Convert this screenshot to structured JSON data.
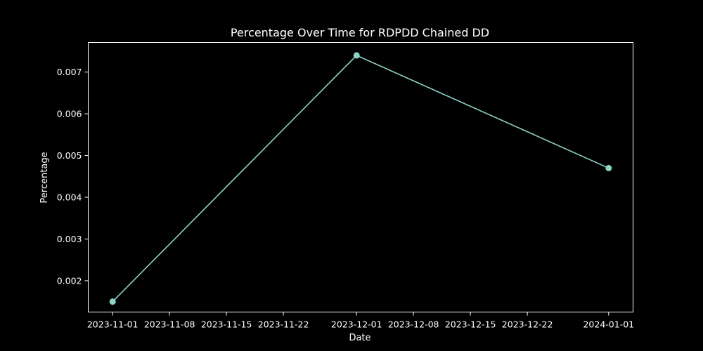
{
  "chart_data": {
    "type": "line",
    "title": "Percentage Over Time for RDPDD Chained DD",
    "xlabel": "Date",
    "ylabel": "Percentage",
    "x_ticks": [
      "2023-11-01",
      "2023-11-08",
      "2023-11-15",
      "2023-11-22",
      "2023-12-01",
      "2023-12-08",
      "2023-12-15",
      "2023-12-22",
      "2024-01-01"
    ],
    "y_ticks": [
      0.002,
      0.003,
      0.004,
      0.005,
      0.006,
      0.007
    ],
    "y_tick_labels": [
      "0.002",
      "0.003",
      "0.004",
      "0.005",
      "0.006",
      "0.007"
    ],
    "xlim": [
      "2023-10-29",
      "2024-01-04"
    ],
    "ylim": [
      0.00125,
      0.00771
    ],
    "grid": false,
    "series": [
      {
        "x": [
          "2023-11-01",
          "2023-12-01",
          "2024-01-01"
        ],
        "values": [
          0.0015,
          0.0074,
          0.0047
        ]
      }
    ],
    "colors": {
      "background": "#000000",
      "line": "#8dd3c7",
      "axes": "#ffffff",
      "text": "#ffffff"
    }
  }
}
